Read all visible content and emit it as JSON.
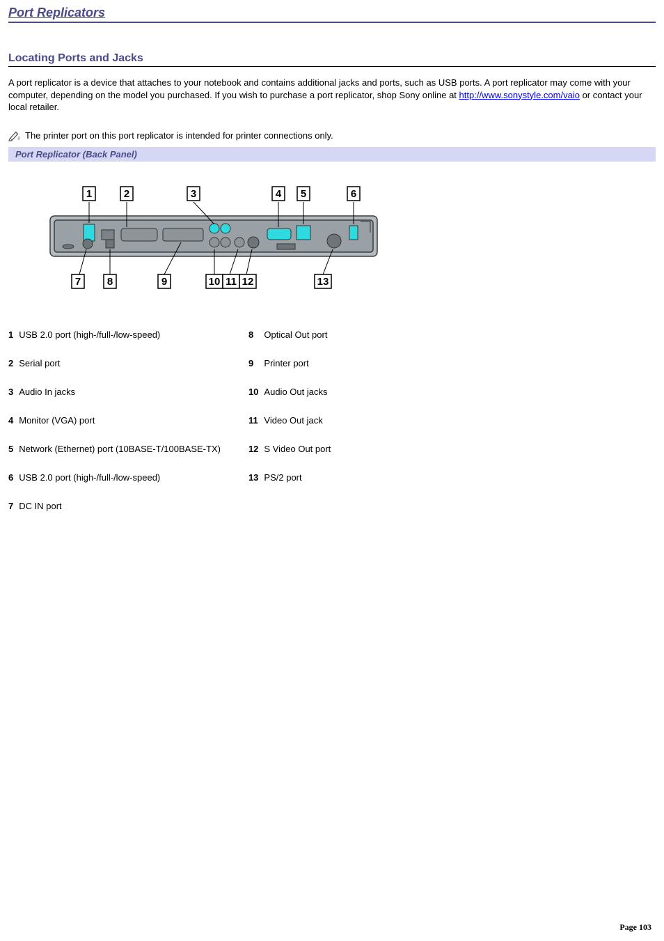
{
  "colors": {
    "accent": "#4a4a8a",
    "caption_bg": "#d6d6f5",
    "link": "#0000ee",
    "diagram_body": "#9aa1a6",
    "diagram_stroke": "#3a3f42",
    "diagram_highlight": "#2fd9e0"
  },
  "header": {
    "page_title": "Port Replicators"
  },
  "section": {
    "title": "Locating Ports and Jacks",
    "body_pre": "A port replicator is a device that attaches to your notebook and contains additional jacks and ports, such as USB ports. A port replicator may come with your computer, depending on the model you purchased. If you wish to purchase a port replicator, shop Sony online at ",
    "link_text": "http://www.sonystyle.com/vaio",
    "link_href": "http://www.sonystyle.com/vaio",
    "body_post": " or contact your local retailer."
  },
  "note": "The printer port on this port replicator is intended for printer connections only.",
  "figure": {
    "caption": "Port Replicator (Back Panel)",
    "callouts_top": [
      "1",
      "2",
      "3",
      "4",
      "5",
      "6"
    ],
    "callouts_bottom": [
      "7",
      "8",
      "9",
      "10",
      "11",
      "12",
      "13"
    ]
  },
  "ports": {
    "left": [
      {
        "n": "1",
        "label": "USB 2.0 port (high-/full-/low-speed)"
      },
      {
        "n": "2",
        "label": "Serial port"
      },
      {
        "n": "3",
        "label": "Audio In jacks"
      },
      {
        "n": "4",
        "label": "Monitor (VGA) port"
      },
      {
        "n": "5",
        "label": "Network (Ethernet) port (10BASE-T/100BASE-TX)"
      },
      {
        "n": "6",
        "label": "USB 2.0 port (high-/full-/low-speed)"
      },
      {
        "n": "7",
        "label": "DC IN port"
      }
    ],
    "right": [
      {
        "n": "8",
        "label": "Optical Out port"
      },
      {
        "n": "9",
        "label": "Printer port"
      },
      {
        "n": "10",
        "label": "Audio Out jacks"
      },
      {
        "n": "11",
        "label": "Video Out jack"
      },
      {
        "n": "12",
        "label": "S Video Out port"
      },
      {
        "n": "13",
        "label": "PS/2 port"
      }
    ]
  },
  "footer": {
    "page_label": "Page ",
    "page_number": "103"
  }
}
